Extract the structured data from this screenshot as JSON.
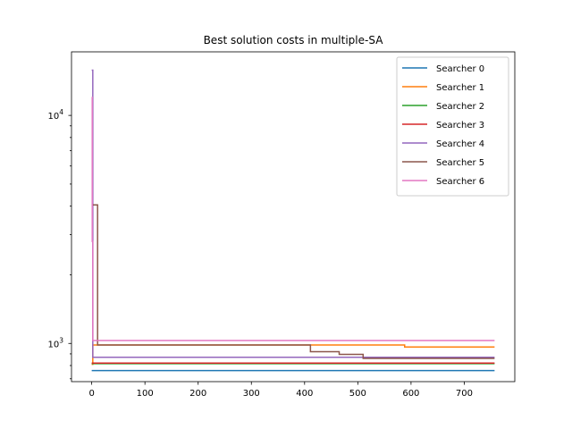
{
  "chart_data": {
    "type": "line",
    "title": "Best solution costs in multiple-SA",
    "xlabel": "",
    "ylabel": "",
    "yscale": "log",
    "xlim": [
      -38,
      795
    ],
    "ylim": [
      680,
      19000
    ],
    "x_ticks": [
      0,
      100,
      200,
      300,
      400,
      500,
      600,
      700
    ],
    "y_ticks": [
      {
        "value": 1000,
        "base": "10",
        "exp": "3"
      },
      {
        "value": 10000,
        "base": "10",
        "exp": "4"
      }
    ],
    "legend_position": "upper right",
    "grid": false,
    "series": [
      {
        "name": "Searcher 0",
        "color": "#1f77b4",
        "points": [
          [
            0,
            760
          ],
          [
            757,
            760
          ]
        ]
      },
      {
        "name": "Searcher 1",
        "color": "#ff7f0e",
        "points": [
          [
            0,
            810
          ],
          [
            2,
            810
          ],
          [
            2,
            985
          ],
          [
            588,
            985
          ],
          [
            588,
            965
          ],
          [
            757,
            965
          ]
        ]
      },
      {
        "name": "Searcher 2",
        "color": "#2ca02c",
        "points": [
          [
            0,
            815
          ],
          [
            757,
            815
          ]
        ]
      },
      {
        "name": "Searcher 3",
        "color": "#d62728",
        "points": [
          [
            0,
            820
          ],
          [
            757,
            820
          ]
        ]
      },
      {
        "name": "Searcher 4",
        "color": "#9467bd",
        "points": [
          [
            0,
            15800
          ],
          [
            2,
            15800
          ],
          [
            2,
            870
          ],
          [
            757,
            870
          ]
        ]
      },
      {
        "name": "Searcher 5",
        "color": "#8c564b",
        "points": [
          [
            0,
            4050
          ],
          [
            11,
            4050
          ],
          [
            11,
            985
          ],
          [
            411,
            985
          ],
          [
            411,
            920
          ],
          [
            465,
            920
          ],
          [
            465,
            895
          ],
          [
            510,
            895
          ],
          [
            510,
            860
          ],
          [
            757,
            860
          ]
        ]
      },
      {
        "name": "Searcher 6",
        "color": "#e377c2",
        "points": [
          [
            0,
            12000
          ],
          [
            1,
            12000
          ],
          [
            1,
            2800
          ],
          [
            2,
            2800
          ],
          [
            2,
            1030
          ],
          [
            757,
            1030
          ]
        ]
      }
    ]
  }
}
